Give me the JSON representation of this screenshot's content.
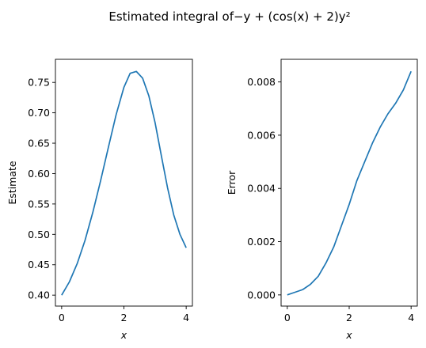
{
  "figure": {
    "title": "Estimated integral of−y + (cos(x) + 2)y²"
  },
  "chart_data": [
    {
      "type": "line",
      "xlabel": "x",
      "ylabel": "Estimate",
      "xlim": [
        -0.2,
        4.2
      ],
      "ylim": [
        0.382,
        0.788
      ],
      "xticks": [
        0,
        2,
        4
      ],
      "xtick_labels": [
        "0",
        "2",
        "4"
      ],
      "yticks": [
        0.4,
        0.45,
        0.5,
        0.55,
        0.6,
        0.65,
        0.7,
        0.75
      ],
      "ytick_labels": [
        "0.40",
        "0.45",
        "0.50",
        "0.55",
        "0.60",
        "0.65",
        "0.70",
        "0.75"
      ],
      "series": [
        {
          "color": "#1f77b4",
          "x": [
            0,
            0.25,
            0.5,
            0.75,
            1.0,
            1.25,
            1.5,
            1.75,
            2.0,
            2.2,
            2.4,
            2.6,
            2.8,
            3.0,
            3.2,
            3.4,
            3.6,
            3.8,
            4.0
          ],
          "y": [
            0.4,
            0.422,
            0.452,
            0.49,
            0.536,
            0.588,
            0.643,
            0.697,
            0.742,
            0.765,
            0.768,
            0.757,
            0.728,
            0.684,
            0.63,
            0.577,
            0.532,
            0.5,
            0.478
          ]
        }
      ]
    },
    {
      "type": "line",
      "xlabel": "x",
      "ylabel": "Error",
      "xlim": [
        -0.2,
        4.2
      ],
      "ylim": [
        -0.00042,
        0.00885
      ],
      "xticks": [
        0,
        2,
        4
      ],
      "xtick_labels": [
        "0",
        "2",
        "4"
      ],
      "yticks": [
        0.0,
        0.002,
        0.004,
        0.006,
        0.008
      ],
      "ytick_labels": [
        "0.000",
        "0.002",
        "0.004",
        "0.006",
        "0.008"
      ],
      "series": [
        {
          "color": "#1f77b4",
          "x": [
            0,
            0.25,
            0.5,
            0.75,
            1.0,
            1.25,
            1.5,
            1.75,
            2.0,
            2.25,
            2.5,
            2.75,
            3.0,
            3.25,
            3.5,
            3.75,
            4.0
          ],
          "y": [
            0.0,
            0.0001,
            0.0002,
            0.0004,
            0.0007,
            0.0012,
            0.0018,
            0.0026,
            0.0034,
            0.0043,
            0.005,
            0.0057,
            0.0063,
            0.0068,
            0.0072,
            0.0077,
            0.0084
          ]
        }
      ]
    }
  ]
}
